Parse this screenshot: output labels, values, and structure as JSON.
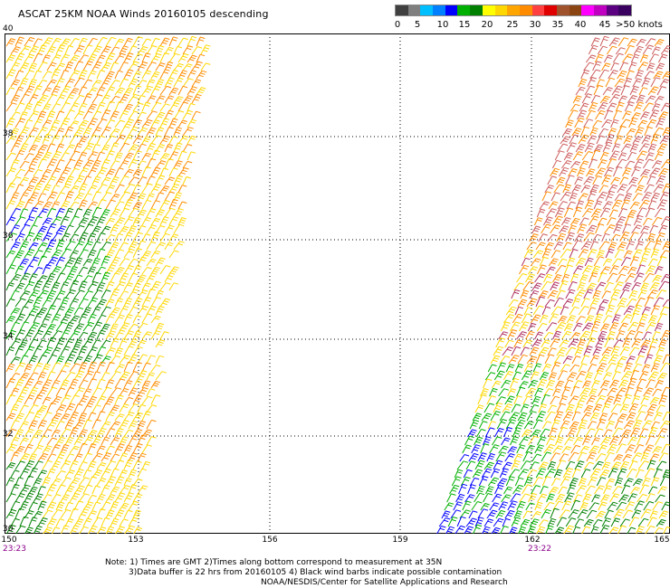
{
  "title": "ASCAT 25KM NOAA Winds 20160105 descending",
  "legend": {
    "colors": [
      "#404040",
      "#7f7f7f",
      "#00bfff",
      "#0080ff",
      "#0000ff",
      "#00b000",
      "#008000",
      "#ffff00",
      "#ffd700",
      "#ffa500",
      "#ff8c00",
      "#ff4040",
      "#e00000",
      "#a0522d",
      "#8b4513",
      "#ff00ff",
      "#c000c0",
      "#5a0080",
      "#3a0060"
    ],
    "labels": [
      "0",
      "5",
      "10",
      "15",
      "20",
      "25",
      "30",
      "35",
      "40",
      "45",
      ">50 knots"
    ]
  },
  "lat_labels": [
    "40",
    "38",
    "36",
    "34",
    "32",
    "30"
  ],
  "lon_labels": [
    "150",
    "153",
    "156",
    "159",
    "162",
    "165"
  ],
  "times": [
    "23:23",
    "23:22"
  ],
  "notes": [
    "Note: 1) Times are GMT 2)Times along bottom correspond to measurement at 35N",
    "3)Data buffer is 22 hrs from 20160105 4) Black wind barbs indicate possible contamination",
    "NOAA/NESDIS/Center for Satellite Applications and Research"
  ]
}
